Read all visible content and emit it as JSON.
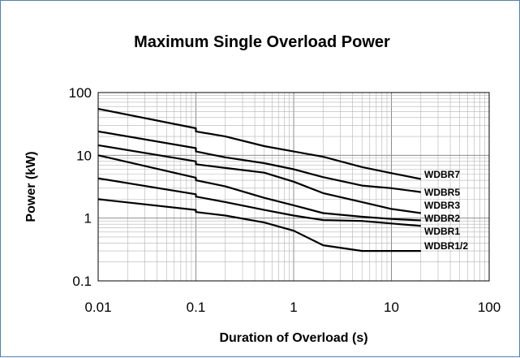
{
  "chart_data": {
    "type": "line",
    "title": "Maximum Single Overload Power",
    "xlabel": "Duration of Overload (s)",
    "ylabel": "Power (kW)",
    "xscale": "log",
    "yscale": "log",
    "xlim": [
      0.01,
      100
    ],
    "ylim": [
      0.1,
      100
    ],
    "xticks": [
      "0.01",
      "0.1",
      "1",
      "10",
      "100"
    ],
    "yticks": [
      "0.1",
      "1",
      "10",
      "100"
    ],
    "grid": true,
    "legend": "labels at line ends",
    "series": [
      {
        "name": "WDBR7",
        "x": [
          0.01,
          0.1,
          0.1,
          0.2,
          0.5,
          1,
          2,
          5,
          10,
          20
        ],
        "y": [
          55,
          27,
          24,
          20,
          14,
          11.5,
          9.5,
          6.5,
          5.2,
          4.2
        ]
      },
      {
        "name": "WDBR5",
        "x": [
          0.01,
          0.1,
          0.1,
          0.2,
          0.5,
          1,
          2,
          5,
          10,
          20
        ],
        "y": [
          24,
          13,
          11.5,
          9.3,
          7.5,
          6,
          4.5,
          3.3,
          3,
          2.6
        ]
      },
      {
        "name": "WDBR3",
        "x": [
          0.01,
          0.1,
          0.1,
          0.2,
          0.5,
          1,
          2,
          5,
          10,
          20
        ],
        "y": [
          14.5,
          8,
          7.2,
          6.3,
          5.3,
          3.8,
          2.5,
          1.8,
          1.4,
          1.2
        ]
      },
      {
        "name": "WDBR2",
        "x": [
          0.01,
          0.1,
          0.1,
          0.2,
          0.5,
          1,
          2,
          5,
          10,
          20
        ],
        "y": [
          10,
          4.4,
          4,
          3.2,
          2.1,
          1.6,
          1.2,
          1.05,
          0.97,
          0.92
        ]
      },
      {
        "name": "WDBR1",
        "x": [
          0.01,
          0.1,
          0.1,
          0.2,
          0.5,
          1,
          2,
          5,
          10,
          20
        ],
        "y": [
          4.3,
          2.4,
          2.2,
          1.8,
          1.35,
          1.1,
          0.93,
          0.9,
          0.82,
          0.75
        ]
      },
      {
        "name": "WDBR1/2",
        "x": [
          0.01,
          0.1,
          0.1,
          0.2,
          0.5,
          1,
          2,
          5,
          10,
          20
        ],
        "y": [
          2,
          1.35,
          1.25,
          1.1,
          0.85,
          0.63,
          0.37,
          0.3,
          0.3,
          0.3
        ]
      }
    ]
  }
}
